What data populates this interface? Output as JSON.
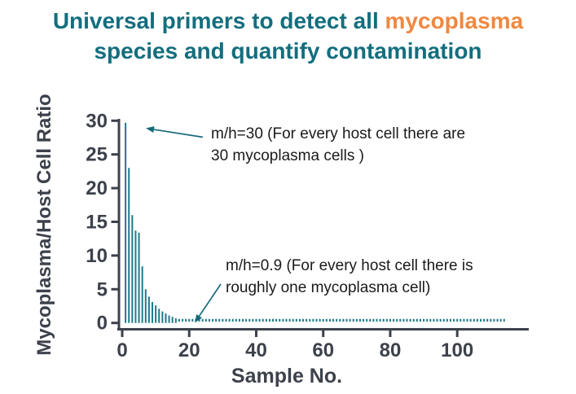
{
  "title": {
    "line1_prefix": "Universal primers to detect all ",
    "line1_highlight": "mycoplasma",
    "line2": "species and quantify contamination"
  },
  "colors": {
    "background": "#FFFFFF",
    "title_teal": "#136E7E",
    "highlight_orange": "#F0883F",
    "axis_dark": "#3C414B",
    "bar_teal": "#1F7A8C",
    "arrow_teal": "#17697B",
    "annotation_text": "#1A1A1A"
  },
  "chart_data": {
    "type": "bar",
    "title": "",
    "xlabel": "Sample No.",
    "ylabel": "Mycoplasma/Host Cell Ratio",
    "xlim": [
      0,
      121
    ],
    "ylim": [
      0,
      30
    ],
    "x_ticks": [
      0,
      20,
      40,
      60,
      80,
      100
    ],
    "y_ticks": [
      0,
      5,
      10,
      15,
      20,
      25,
      30
    ],
    "grid": false,
    "legend": null,
    "samples": [
      1,
      2,
      3,
      4,
      5,
      6,
      7,
      8,
      9,
      10,
      11,
      12,
      13,
      14,
      15,
      16
    ],
    "values": [
      29.7,
      23.0,
      16.0,
      13.7,
      13.4,
      8.4,
      5.0,
      3.9,
      3.1,
      2.6,
      2.1,
      1.7,
      1.4,
      1.1,
      0.9,
      0.7
    ],
    "near_zero_run": {
      "from_sample": 17,
      "to_sample": 114,
      "value": 0.4
    }
  },
  "annotations": [
    {
      "text": "m/h=30 (For every host cell there are\n30 mycoplasma cells )"
    },
    {
      "text": "m/h=0.9  (For every host cell there is\nroughly one mycoplasma cell)"
    }
  ]
}
